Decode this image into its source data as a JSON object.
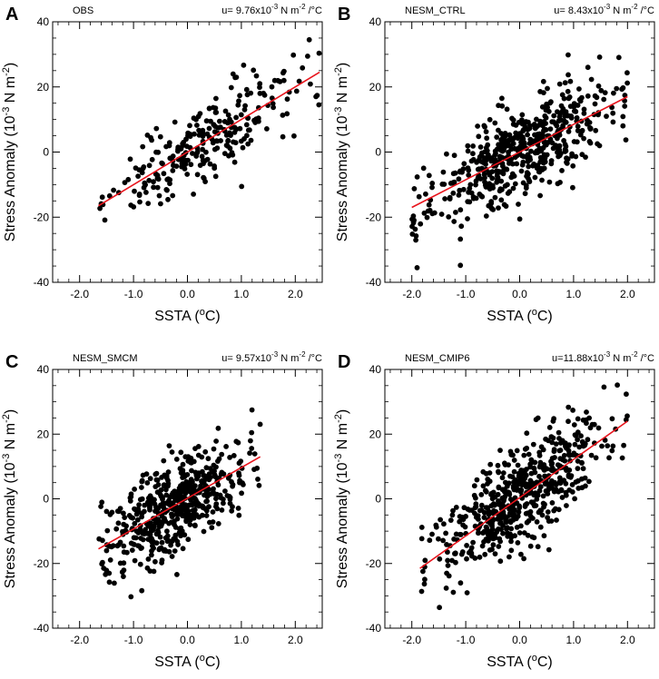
{
  "chart_data": [
    {
      "type": "scatter",
      "panel_letter": "A",
      "title_left": "OBS",
      "slope_text": {
        "prefix": "u= 9.76x10",
        "exp": "-3",
        "mid": " N m",
        "exp2": "-2",
        "suffix": " /°C"
      },
      "xlabel": {
        "main": "SSTA (",
        "sup": "o",
        "end": "C)"
      },
      "ylabel": {
        "main": "Stress Anomaly (10",
        "sup": "-3",
        "mid": " N m",
        "sup2": "-2",
        "end": ")"
      },
      "xlim": [
        -2.5,
        2.5
      ],
      "ylim": [
        -40,
        40
      ],
      "xticks": [
        -2.0,
        -1.0,
        0.0,
        1.0,
        2.0
      ],
      "xtick_labels": [
        "-2.0",
        "-1.0",
        "0.0",
        "1.0",
        "2.0"
      ],
      "yticks": [
        -40,
        -20,
        0,
        20,
        40
      ],
      "ytick_labels": [
        "-40",
        "-20",
        "0",
        "20",
        "40"
      ],
      "fit_line": {
        "color": "#e8141c",
        "x": [
          -1.65,
          2.45
        ],
        "y": [
          -16.5,
          24.5
        ]
      },
      "n_points": 260,
      "slope": 9.76,
      "spread": 6.5,
      "x_range": [
        -1.65,
        2.45
      ],
      "seed": 11
    },
    {
      "type": "scatter",
      "panel_letter": "B",
      "title_left": "NESM_CTRL",
      "slope_text": {
        "prefix": "u= 8.43x10",
        "exp": "-3",
        "mid": " N m",
        "exp2": "-2",
        "suffix": " /°C"
      },
      "xlabel": {
        "main": "SSTA (",
        "sup": "o",
        "end": "C)"
      },
      "ylabel": {
        "main": "Stress Anomaly (10",
        "sup": "-3",
        "mid": " N m",
        "sup2": "-2",
        "end": ")"
      },
      "xlim": [
        -2.5,
        2.5
      ],
      "ylim": [
        -40,
        40
      ],
      "xticks": [
        -2.0,
        -1.0,
        0.0,
        1.0,
        2.0
      ],
      "xtick_labels": [
        "-2.0",
        "-1.0",
        "0.0",
        "1.0",
        "2.0"
      ],
      "yticks": [
        -40,
        -20,
        0,
        20,
        40
      ],
      "ytick_labels": [
        "-40",
        "-20",
        "0",
        "20",
        "40"
      ],
      "fit_line": {
        "color": "#e8141c",
        "x": [
          -2.0,
          2.0
        ],
        "y": [
          -17.0,
          17.0
        ]
      },
      "n_points": 560,
      "slope": 8.43,
      "spread": 7.0,
      "x_range": [
        -2.0,
        2.0
      ],
      "seed": 23
    },
    {
      "type": "scatter",
      "panel_letter": "C",
      "title_left": "NESM_SMCM",
      "slope_text": {
        "prefix": "u= 9.57x10",
        "exp": "-3",
        "mid": " N m",
        "exp2": "-2",
        "suffix": " /°C"
      },
      "xlabel": {
        "main": "SSTA (",
        "sup": "o",
        "end": "C)"
      },
      "ylabel": {
        "main": "Stress Anomaly (10",
        "sup": "-3",
        "mid": " N m",
        "sup2": "-2",
        "end": ")"
      },
      "xlim": [
        -2.5,
        2.5
      ],
      "ylim": [
        -40,
        40
      ],
      "xticks": [
        -2.0,
        -1.0,
        0.0,
        1.0,
        2.0
      ],
      "xtick_labels": [
        "-2.0",
        "-1.0",
        "0.0",
        "1.0",
        "2.0"
      ],
      "yticks": [
        -40,
        -20,
        0,
        20,
        40
      ],
      "ytick_labels": [
        "-40",
        "-20",
        "0",
        "20",
        "40"
      ],
      "fit_line": {
        "color": "#e8141c",
        "x": [
          -1.65,
          1.35
        ],
        "y": [
          -15.5,
          13.0
        ]
      },
      "n_points": 520,
      "slope": 9.57,
      "spread": 7.0,
      "x_range": [
        -1.65,
        1.35
      ],
      "seed": 37
    },
    {
      "type": "scatter",
      "panel_letter": "D",
      "title_left": "NESM_CMIP6",
      "slope_text": {
        "prefix": "u=11.88x10",
        "exp": "-3",
        "mid": " N m",
        "exp2": "-2",
        "suffix": " /°C"
      },
      "xlabel": {
        "main": "SSTA (",
        "sup": "o",
        "end": "C)"
      },
      "ylabel": {
        "main": "Stress Anomaly (10",
        "sup": "-3",
        "mid": " N m",
        "sup2": "-2",
        "end": ")"
      },
      "xlim": [
        -2.5,
        2.5
      ],
      "ylim": [
        -40,
        40
      ],
      "xticks": [
        -2.0,
        -1.0,
        0.0,
        1.0,
        2.0
      ],
      "xtick_labels": [
        "-2.0",
        "-1.0",
        "0.0",
        "1.0",
        "2.0"
      ],
      "yticks": [
        -40,
        -20,
        0,
        20,
        40
      ],
      "ytick_labels": [
        "-40",
        "-20",
        "0",
        "20",
        "40"
      ],
      "fit_line": {
        "color": "#e8141c",
        "x": [
          -1.85,
          2.0
        ],
        "y": [
          -21.5,
          24.0
        ]
      },
      "n_points": 560,
      "slope": 11.88,
      "spread": 7.5,
      "x_range": [
        -1.85,
        2.0
      ],
      "seed": 53
    }
  ]
}
